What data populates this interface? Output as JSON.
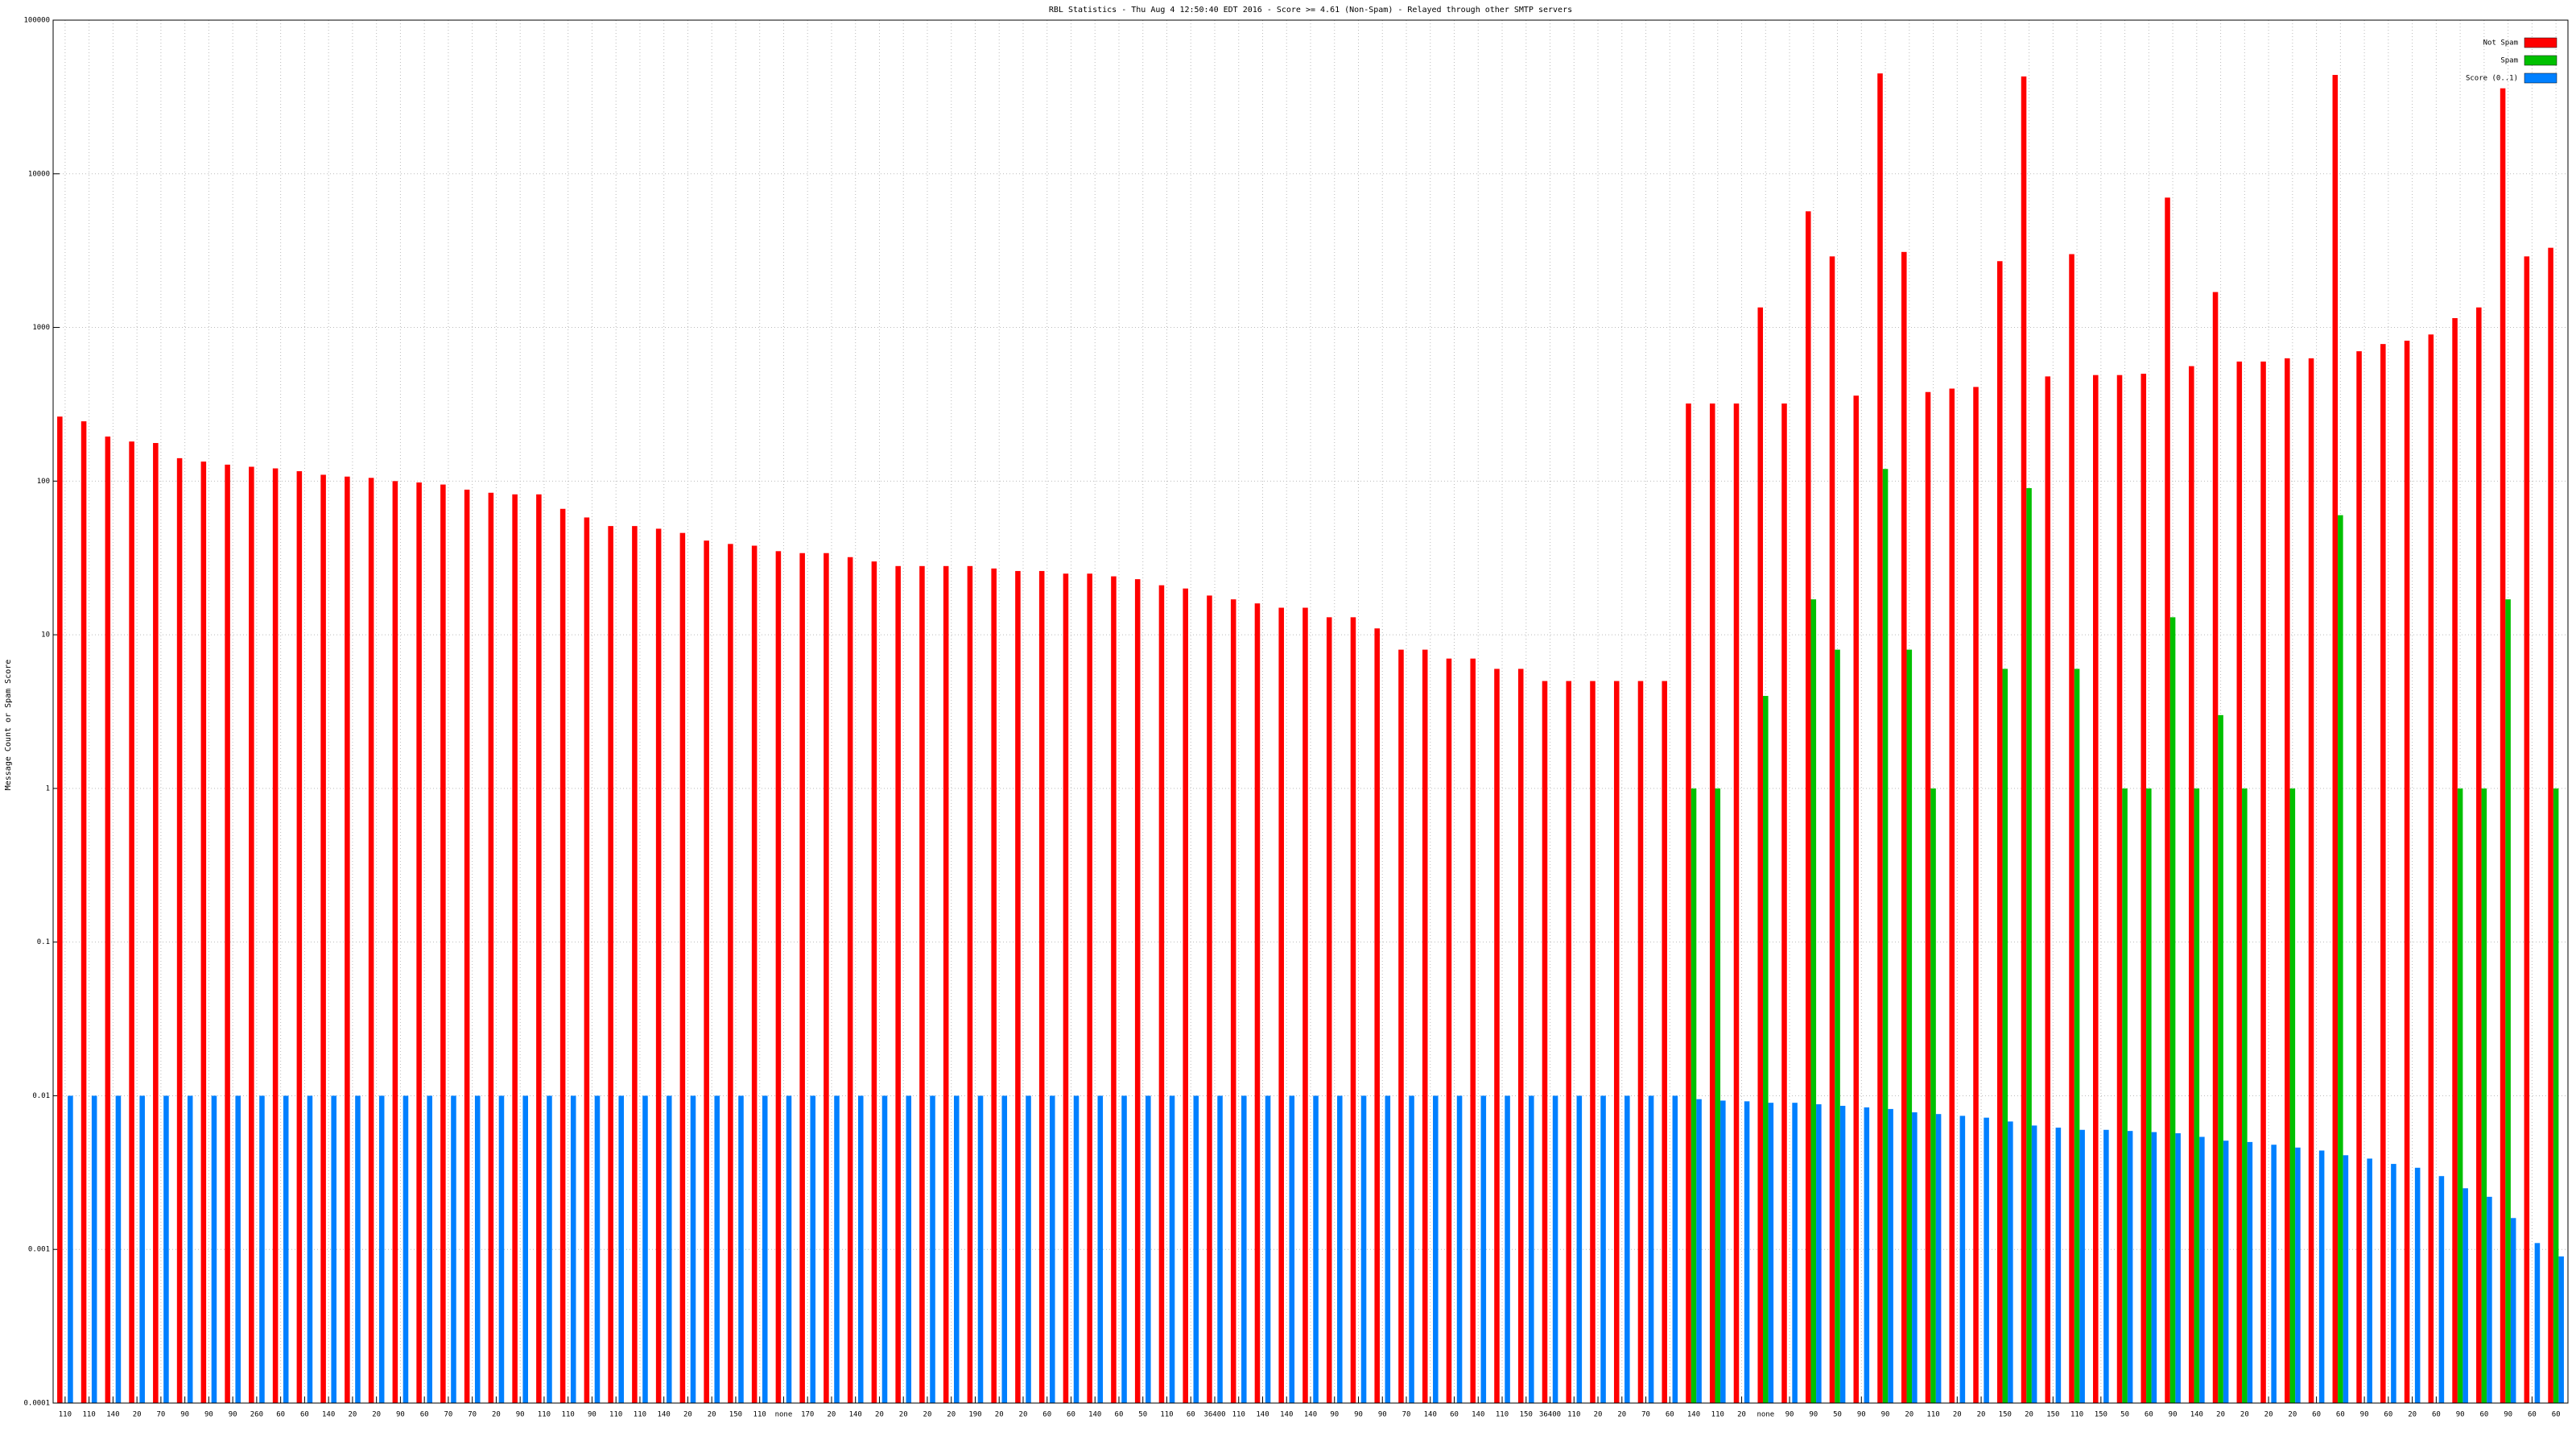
{
  "chart_data": {
    "type": "bar",
    "title": "RBL Statistics - Thu Aug  4 12:50:40 EDT 2016 - Score >= 4.61 (Non-Spam) - Relayed through other SMTP servers",
    "y_label": "Message Count or Spam Score",
    "log_y": true,
    "grid": true,
    "legend": "top-right",
    "ylim": [
      0.0001,
      100000
    ],
    "yticks": [
      0.0001,
      0.001,
      0.01,
      0.1,
      1,
      10,
      100,
      1000,
      10000,
      100000
    ],
    "categories": [
      "110",
      "110",
      "140",
      "20",
      "70",
      "90",
      "90",
      "90",
      "260",
      "60",
      "60",
      "140",
      "20",
      "20",
      "90",
      "60",
      "70",
      "70",
      "20",
      "90",
      "110",
      "110",
      "90",
      "110",
      "110",
      "140",
      "20",
      "20",
      "150",
      "110",
      "none",
      "170",
      "20",
      "140",
      "20",
      "20",
      "20",
      "20",
      "190",
      "20",
      "20",
      "60",
      "60",
      "140",
      "60",
      "50",
      "110",
      "60",
      "36400",
      "110",
      "140",
      "140",
      "140",
      "90",
      "90",
      "90",
      "70",
      "140",
      "60",
      "140",
      "110",
      "150",
      "36400",
      "110",
      "20",
      "20",
      "70",
      "60",
      "140",
      "110",
      "20",
      "none",
      "90",
      "90",
      "50",
      "90",
      "90",
      "20",
      "110",
      "20",
      "20",
      "150",
      "20",
      "150",
      "110",
      "150",
      "50",
      "60",
      "90",
      "140",
      "20",
      "20",
      "20",
      "20",
      "60",
      "60",
      "90",
      "60",
      "20",
      "60",
      "90",
      "60",
      "90",
      "60",
      "60"
    ],
    "series": [
      {
        "name": "Not Spam",
        "color": "#ff0000",
        "values": [
          263,
          245,
          195,
          181,
          177,
          141,
          134,
          128,
          124,
          121,
          116,
          110,
          107,
          105,
          100,
          98,
          95,
          88,
          84,
          82,
          82,
          66,
          58,
          51,
          51,
          49,
          46,
          41,
          39,
          38,
          35,
          34,
          34,
          32,
          30,
          28,
          28,
          28,
          28,
          27,
          26,
          26,
          25,
          25,
          24,
          23,
          21,
          20,
          18,
          17,
          16,
          15,
          15,
          13,
          13,
          11,
          8,
          8,
          7,
          7,
          6,
          6,
          5,
          5,
          5,
          5,
          5,
          5,
          320,
          320,
          320,
          1350,
          320,
          5700,
          2900,
          360,
          45000,
          3100,
          380,
          400,
          410,
          2700,
          43000,
          480,
          3000,
          490,
          490,
          500,
          7000,
          560,
          1700,
          600,
          600,
          630,
          630,
          44000,
          700,
          780,
          820,
          900,
          1150,
          1350,
          36000,
          2900,
          3300
        ]
      },
      {
        "name": "Spam",
        "color": "#00c000",
        "values": [
          null,
          null,
          null,
          null,
          null,
          null,
          null,
          null,
          null,
          null,
          null,
          null,
          null,
          null,
          null,
          null,
          null,
          null,
          null,
          null,
          null,
          null,
          null,
          null,
          null,
          null,
          null,
          null,
          null,
          null,
          null,
          null,
          null,
          null,
          null,
          null,
          null,
          null,
          null,
          null,
          null,
          null,
          null,
          null,
          null,
          null,
          null,
          null,
          null,
          null,
          null,
          null,
          null,
          null,
          null,
          null,
          null,
          null,
          null,
          null,
          null,
          null,
          null,
          null,
          null,
          null,
          null,
          null,
          1,
          1,
          null,
          4,
          null,
          17,
          8,
          null,
          120,
          8,
          1,
          null,
          null,
          6,
          90,
          null,
          6,
          null,
          1,
          1,
          13,
          1,
          3,
          1,
          null,
          1,
          null,
          60,
          null,
          null,
          null,
          null,
          1,
          1,
          17,
          null,
          1
        ]
      },
      {
        "name": "Score (0..1)",
        "color": "#0080ff",
        "values": [
          0.01,
          0.01,
          0.01,
          0.01,
          0.01,
          0.01,
          0.01,
          0.01,
          0.01,
          0.01,
          0.01,
          0.01,
          0.01,
          0.01,
          0.01,
          0.01,
          0.01,
          0.01,
          0.01,
          0.01,
          0.01,
          0.01,
          0.01,
          0.01,
          0.01,
          0.01,
          0.01,
          0.01,
          0.01,
          0.01,
          0.01,
          0.01,
          0.01,
          0.01,
          0.01,
          0.01,
          0.01,
          0.01,
          0.01,
          0.01,
          0.01,
          0.01,
          0.01,
          0.01,
          0.01,
          0.01,
          0.01,
          0.01,
          0.01,
          0.01,
          0.01,
          0.01,
          0.01,
          0.01,
          0.01,
          0.01,
          0.01,
          0.01,
          0.01,
          0.01,
          0.01,
          0.01,
          0.01,
          0.01,
          0.01,
          0.01,
          0.01,
          0.01,
          0.0095,
          0.0093,
          0.0092,
          0.009,
          0.009,
          0.0088,
          0.0086,
          0.0084,
          0.0082,
          0.0078,
          0.0076,
          0.0074,
          0.0072,
          0.0068,
          0.0064,
          0.0062,
          0.006,
          0.006,
          0.0059,
          0.0058,
          0.0057,
          0.0054,
          0.0051,
          0.005,
          0.0048,
          0.0046,
          0.0044,
          0.0041,
          0.0039,
          0.0036,
          0.0034,
          0.003,
          0.0025,
          0.0022,
          0.0016,
          0.0011,
          0.0009
        ]
      }
    ]
  }
}
